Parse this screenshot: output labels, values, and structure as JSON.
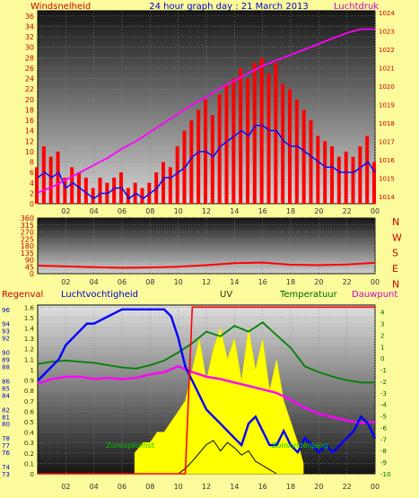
{
  "header": {
    "left_label": "Windsnelheid",
    "title": "24 hour graph day : 21 March 2013",
    "right_label": "Luchtdruk"
  },
  "legend": {
    "rain": "Regenval",
    "humidity": "Luchtvochtigheid",
    "uv": "UV",
    "temperature": "Temperatuur",
    "dewpoint": "Dauwpunt"
  },
  "annotations": {
    "sunrise": "Zonsopkomst",
    "sunset": "Zonsondergang"
  },
  "colors": {
    "background": "#fbfb9b",
    "wind": "#ff0000",
    "gust_avg": "#0000ff",
    "pressure": "#ff00ff",
    "humidity": "#0000ff",
    "temperature": "#008000",
    "uv": "#ffff00",
    "solar": "#000000",
    "rain": "#ff0000",
    "axis_left": "#cc0000",
    "axis_blue": "#0000cc",
    "axis_green": "#006600"
  },
  "chart_data": [
    {
      "type": "line",
      "x_ticks": [
        "02",
        "04",
        "06",
        "08",
        "10",
        "12",
        "14",
        "16",
        "18",
        "20",
        "22",
        "00"
      ],
      "y_left_ticks": [
        "0",
        "2",
        "4",
        "6",
        "8",
        "10",
        "12",
        "14",
        "16",
        "18",
        "20",
        "22",
        "24",
        "26",
        "28",
        "30",
        "32",
        "34",
        "36"
      ],
      "y_right_ticks": [
        "1014",
        "1015",
        "1016",
        "1017",
        "1018",
        "1019",
        "1020",
        "1021",
        "1022",
        "1023",
        "1024"
      ],
      "ylim_left": [
        0,
        37
      ],
      "ylim_right": [
        1013.6,
        1024.1
      ],
      "series": [
        {
          "name": "Windsnelheid",
          "axis": "left",
          "style": "bars",
          "x": [
            0,
            0.5,
            1,
            1.5,
            2,
            2.5,
            3,
            3.5,
            4,
            4.5,
            5,
            5.5,
            6,
            6.5,
            7,
            7.5,
            8,
            8.5,
            9,
            9.5,
            10,
            10.5,
            11,
            11.5,
            12,
            12.5,
            13,
            13.5,
            14,
            14.5,
            15,
            15.5,
            16,
            16.5,
            17,
            17.5,
            18,
            18.5,
            19,
            19.5,
            20,
            20.5,
            21,
            21.5,
            22,
            22.5,
            23,
            23.5,
            24
          ],
          "values": [
            7,
            11,
            9,
            10,
            5,
            7,
            6,
            5,
            3,
            5,
            4,
            5,
            6,
            3,
            4,
            3,
            4,
            6,
            8,
            7,
            11,
            14,
            16,
            18,
            20,
            17,
            21,
            23,
            24,
            26,
            24,
            27,
            28,
            25,
            27,
            23,
            22,
            20,
            18,
            16,
            13,
            12,
            11,
            9,
            10,
            9,
            11,
            13,
            8
          ]
        },
        {
          "name": "",
          "axis": "left",
          "style": "line",
          "x": [
            0,
            0.5,
            1,
            1.5,
            2,
            2.5,
            3,
            3.5,
            4,
            4.5,
            5,
            5.5,
            6,
            6.5,
            7,
            7.5,
            8,
            8.5,
            9,
            9.5,
            10,
            10.5,
            11,
            11.5,
            12,
            12.5,
            13,
            13.5,
            14,
            14.5,
            15,
            15.5,
            16,
            16.5,
            17,
            17.5,
            18,
            18.5,
            19,
            19.5,
            20,
            20.5,
            21,
            21.5,
            22,
            22.5,
            23,
            23.5,
            24
          ],
          "values": [
            5,
            6,
            5,
            6,
            3,
            4,
            3,
            2,
            1,
            2,
            2,
            3,
            3,
            1,
            2,
            1,
            2,
            3,
            5,
            5,
            6,
            7,
            9,
            10,
            10,
            9,
            11,
            12,
            13,
            14,
            13,
            15,
            15,
            14,
            14,
            12,
            11,
            11,
            10,
            9,
            8,
            7,
            7,
            6,
            6,
            6,
            7,
            8,
            6
          ]
        },
        {
          "name": "Luchtdruk",
          "axis": "right",
          "style": "line",
          "x": [
            0,
            1,
            2,
            3,
            4,
            5,
            6,
            7,
            8,
            9,
            10,
            11,
            12,
            13,
            14,
            15,
            16,
            17,
            18,
            19,
            20,
            21,
            22,
            23,
            24
          ],
          "values": [
            1014.2,
            1014.5,
            1014.9,
            1015.3,
            1015.7,
            1016.1,
            1016.6,
            1017.0,
            1017.5,
            1018.0,
            1018.5,
            1019.0,
            1019.4,
            1019.9,
            1020.3,
            1020.7,
            1021.1,
            1021.4,
            1021.7,
            1022.0,
            1022.3,
            1022.6,
            1022.9,
            1023.1,
            1023.1
          ]
        }
      ]
    },
    {
      "type": "line",
      "x_ticks": [
        "02",
        "04",
        "06",
        "08",
        "10",
        "12",
        "14",
        "16",
        "18",
        "20",
        "22",
        "00"
      ],
      "y_left_ticks": [
        "0",
        "45",
        "90",
        "135",
        "180",
        "225",
        "270",
        "315",
        "360"
      ],
      "y_right_ticks": [
        "N",
        "W",
        "S",
        "E",
        "N"
      ],
      "ylim": [
        0,
        360
      ],
      "series": [
        {
          "name": "",
          "x": [
            0,
            2,
            4,
            6,
            8,
            10,
            12,
            14,
            16,
            18,
            20,
            22,
            24
          ],
          "values": [
            52,
            47,
            42,
            38,
            40,
            45,
            55,
            68,
            72,
            58,
            55,
            60,
            70
          ]
        }
      ]
    },
    {
      "type": "line",
      "x_ticks": [
        "02",
        "04",
        "06",
        "08",
        "10",
        "12",
        "14",
        "16",
        "18",
        "20",
        "22",
        "00"
      ],
      "y_humidity_ticks": [
        "73",
        "74",
        "76",
        "77",
        "78",
        "80",
        "81",
        "82",
        "84",
        "85",
        "86",
        "88",
        "89",
        "90",
        "92",
        "93",
        "94",
        "96"
      ],
      "y_uv_ticks": [
        "0",
        "0.1",
        "0.2",
        "0.3",
        "0.4",
        "0.5",
        "0.6",
        "0.7",
        "0.8",
        "0.9",
        "1",
        "1.1",
        "1.2",
        "1.3",
        "1.4",
        "1.5",
        "1.6"
      ],
      "y_temp_ticks": [
        "-10",
        "-9",
        "-8",
        "-7",
        "-6",
        "-5",
        "-4",
        "-3",
        "-2",
        "-1",
        "0",
        "1",
        "2",
        "3",
        "4"
      ],
      "ylim_humidity": [
        73,
        96.6
      ],
      "ylim_uv": [
        0,
        1.62
      ],
      "ylim_temp": [
        -10,
        4.6
      ],
      "series": [
        {
          "name": "Luchtvochtigheid",
          "axis": "humidity",
          "x": [
            0,
            0.5,
            1,
            1.5,
            2,
            2.5,
            3,
            3.5,
            4,
            5,
            6,
            7,
            8,
            9,
            9.5,
            10,
            10.5,
            11,
            11.5,
            12,
            12.5,
            13,
            13.5,
            14,
            14.5,
            15,
            15.5,
            16,
            16.5,
            17,
            17.5,
            18,
            18.5,
            19,
            19.5,
            20,
            20.5,
            21,
            21.5,
            22,
            22.5,
            23,
            23.5,
            24
          ],
          "values": [
            86,
            87,
            88,
            89,
            91,
            92,
            93,
            94,
            94,
            95,
            96,
            96,
            96,
            96,
            95,
            92,
            88,
            86,
            84,
            82,
            81,
            80,
            79,
            78,
            77,
            80,
            81,
            79,
            77,
            77,
            79,
            77,
            76,
            78,
            77,
            76,
            77,
            76,
            77,
            78,
            79,
            81,
            80,
            78
          ]
        },
        {
          "name": "Temperatuur",
          "axis": "temp",
          "x": [
            0,
            1,
            2,
            3,
            4,
            5,
            6,
            7,
            8,
            9,
            10,
            11,
            12,
            13,
            14,
            15,
            16,
            17,
            18,
            19,
            20,
            21,
            22,
            23,
            24
          ],
          "values": [
            -0.5,
            -0.3,
            -0.2,
            -0.3,
            -0.4,
            -0.6,
            -0.8,
            -0.9,
            -0.6,
            -0.2,
            0.5,
            1.3,
            2.3,
            1.9,
            2.8,
            2.3,
            3.1,
            2.0,
            0.9,
            -0.7,
            -1.2,
            -1.6,
            -1.9,
            -2.1,
            -2.1
          ]
        },
        {
          "name": "Dauwpunt",
          "axis": "temp",
          "x": [
            0,
            1,
            2,
            3,
            4,
            5,
            6,
            7,
            8,
            9,
            10,
            11,
            12,
            13,
            14,
            15,
            16,
            17,
            18,
            19,
            20,
            21,
            22,
            23,
            24
          ],
          "values": [
            -2.2,
            -1.8,
            -1.6,
            -1.6,
            -1.8,
            -1.7,
            -1.8,
            -1.7,
            -1.4,
            -1.2,
            -0.7,
            -1.2,
            -1.6,
            -1.8,
            -2.1,
            -2.4,
            -2.7,
            -3.0,
            -3.6,
            -4.3,
            -4.8,
            -5.1,
            -5.4,
            -5.6,
            -5.5
          ]
        },
        {
          "name": "UV",
          "axis": "uv",
          "style": "area",
          "x": [
            6.9,
            7.5,
            8,
            8.5,
            9,
            9.5,
            10,
            10.5,
            11,
            11.5,
            12,
            12.5,
            13,
            13.5,
            14,
            14.5,
            15,
            15.5,
            16,
            16.5,
            17,
            17.5,
            18,
            18.5,
            18.9
          ],
          "values": [
            0.2,
            0.3,
            0.3,
            0.4,
            0.4,
            0.5,
            0.6,
            0.7,
            1.0,
            1.3,
            0.9,
            1.2,
            1.4,
            1.1,
            1.3,
            0.9,
            1.4,
            1.0,
            1.3,
            0.8,
            1.1,
            0.7,
            0.5,
            0.3,
            0.1
          ]
        },
        {
          "name": "",
          "axis": "uv",
          "x": [
            10,
            10.5,
            11,
            11.5,
            12,
            12.5,
            13,
            13.5,
            14,
            14.5,
            15,
            15.5,
            16,
            16.5,
            17
          ],
          "values": [
            0,
            0.05,
            0.12,
            0.2,
            0.28,
            0.32,
            0.22,
            0.3,
            0.25,
            0.18,
            0.22,
            0.12,
            0.08,
            0.04,
            0
          ]
        },
        {
          "name": "Regenval",
          "axis": "uv",
          "x": [
            0,
            10.5,
            11,
            24
          ],
          "values": [
            0,
            0,
            1.6,
            1.6
          ]
        }
      ]
    }
  ]
}
